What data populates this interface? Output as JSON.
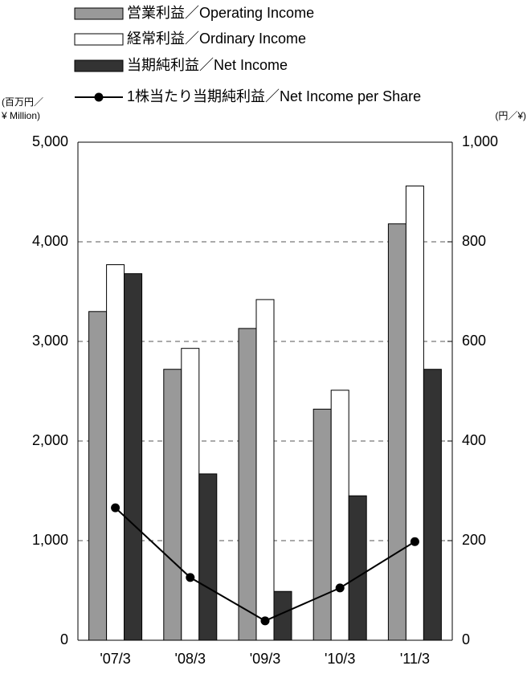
{
  "chart_data": {
    "type": "bar",
    "categories": [
      "'07/3",
      "'08/3",
      "'09/3",
      "'10/3",
      "'11/3"
    ],
    "series": [
      {
        "name": "営業利益／Operating Income",
        "type": "bar",
        "color": "#999999",
        "values": [
          3300,
          2720,
          3130,
          2320,
          4180
        ]
      },
      {
        "name": "経常利益／Ordinary Income",
        "type": "bar",
        "color": "#ffffff",
        "values": [
          3770,
          2930,
          3420,
          2510,
          4560
        ]
      },
      {
        "name": "当期純利益／Net Income",
        "type": "bar",
        "color": "#333333",
        "values": [
          3680,
          1670,
          490,
          1450,
          2720
        ]
      },
      {
        "name": "1株当たり当期純利益／Net Income per Share",
        "type": "line",
        "axis": "y2",
        "color": "#000000",
        "values": [
          266,
          126,
          39,
          105,
          198
        ]
      }
    ],
    "y_axis_label": [
      "(百万円／",
      "¥ Million)"
    ],
    "y2_axis_label": "(円／¥)",
    "ylim": [
      0,
      5000
    ],
    "yticks": [
      0,
      {
        "value": 1000,
        "label": "1,000"
      },
      {
        "value": 2000,
        "label": "2,000"
      },
      {
        "value": 3000,
        "label": "3,000"
      },
      {
        "value": 4000,
        "label": "4,000"
      },
      {
        "value": 5000,
        "label": "5,000"
      }
    ],
    "y2lim": [
      0,
      1000
    ],
    "y2ticks": [
      0,
      200,
      400,
      600,
      800,
      {
        "value": 1000,
        "label": "1,000"
      }
    ],
    "grid": true
  }
}
